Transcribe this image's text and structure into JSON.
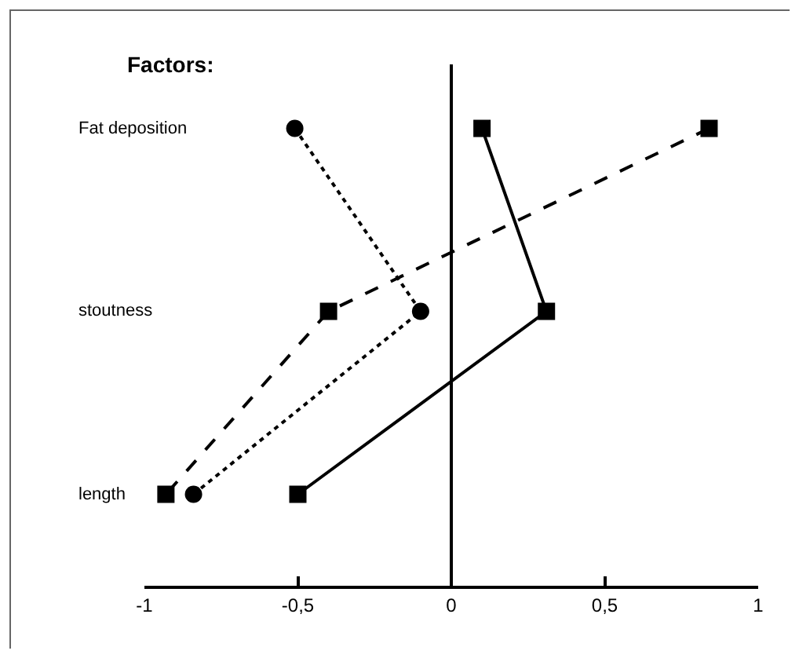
{
  "chart_data": {
    "type": "line",
    "ylabel": "Factors:",
    "orientation": "horizontal",
    "categories": [
      "Fat deposition",
      "stoutness",
      "length"
    ],
    "xlim": [
      -1,
      1
    ],
    "xticks": [
      -1,
      {
        "value": -0.5,
        "label": "-0,5"
      },
      0,
      {
        "value": 0.5,
        "label": "0,5"
      },
      1
    ],
    "grid": false,
    "ref_lines": [
      {
        "axis": "x",
        "value": 0,
        "color": "#000000",
        "line_style": "solid"
      }
    ],
    "series": [
      {
        "color": "#000000",
        "marker": "circle",
        "line_style": "dotted",
        "values": [
          -0.51,
          -0.1,
          -0.84
        ]
      },
      {
        "color": "#000000",
        "marker": "square",
        "line_style": "dashed",
        "values": [
          0.84,
          -0.4,
          -0.93
        ]
      },
      {
        "color": "#000000",
        "marker": "square",
        "line_style": "solid",
        "values": [
          0.1,
          0.31,
          -0.5
        ]
      }
    ]
  }
}
